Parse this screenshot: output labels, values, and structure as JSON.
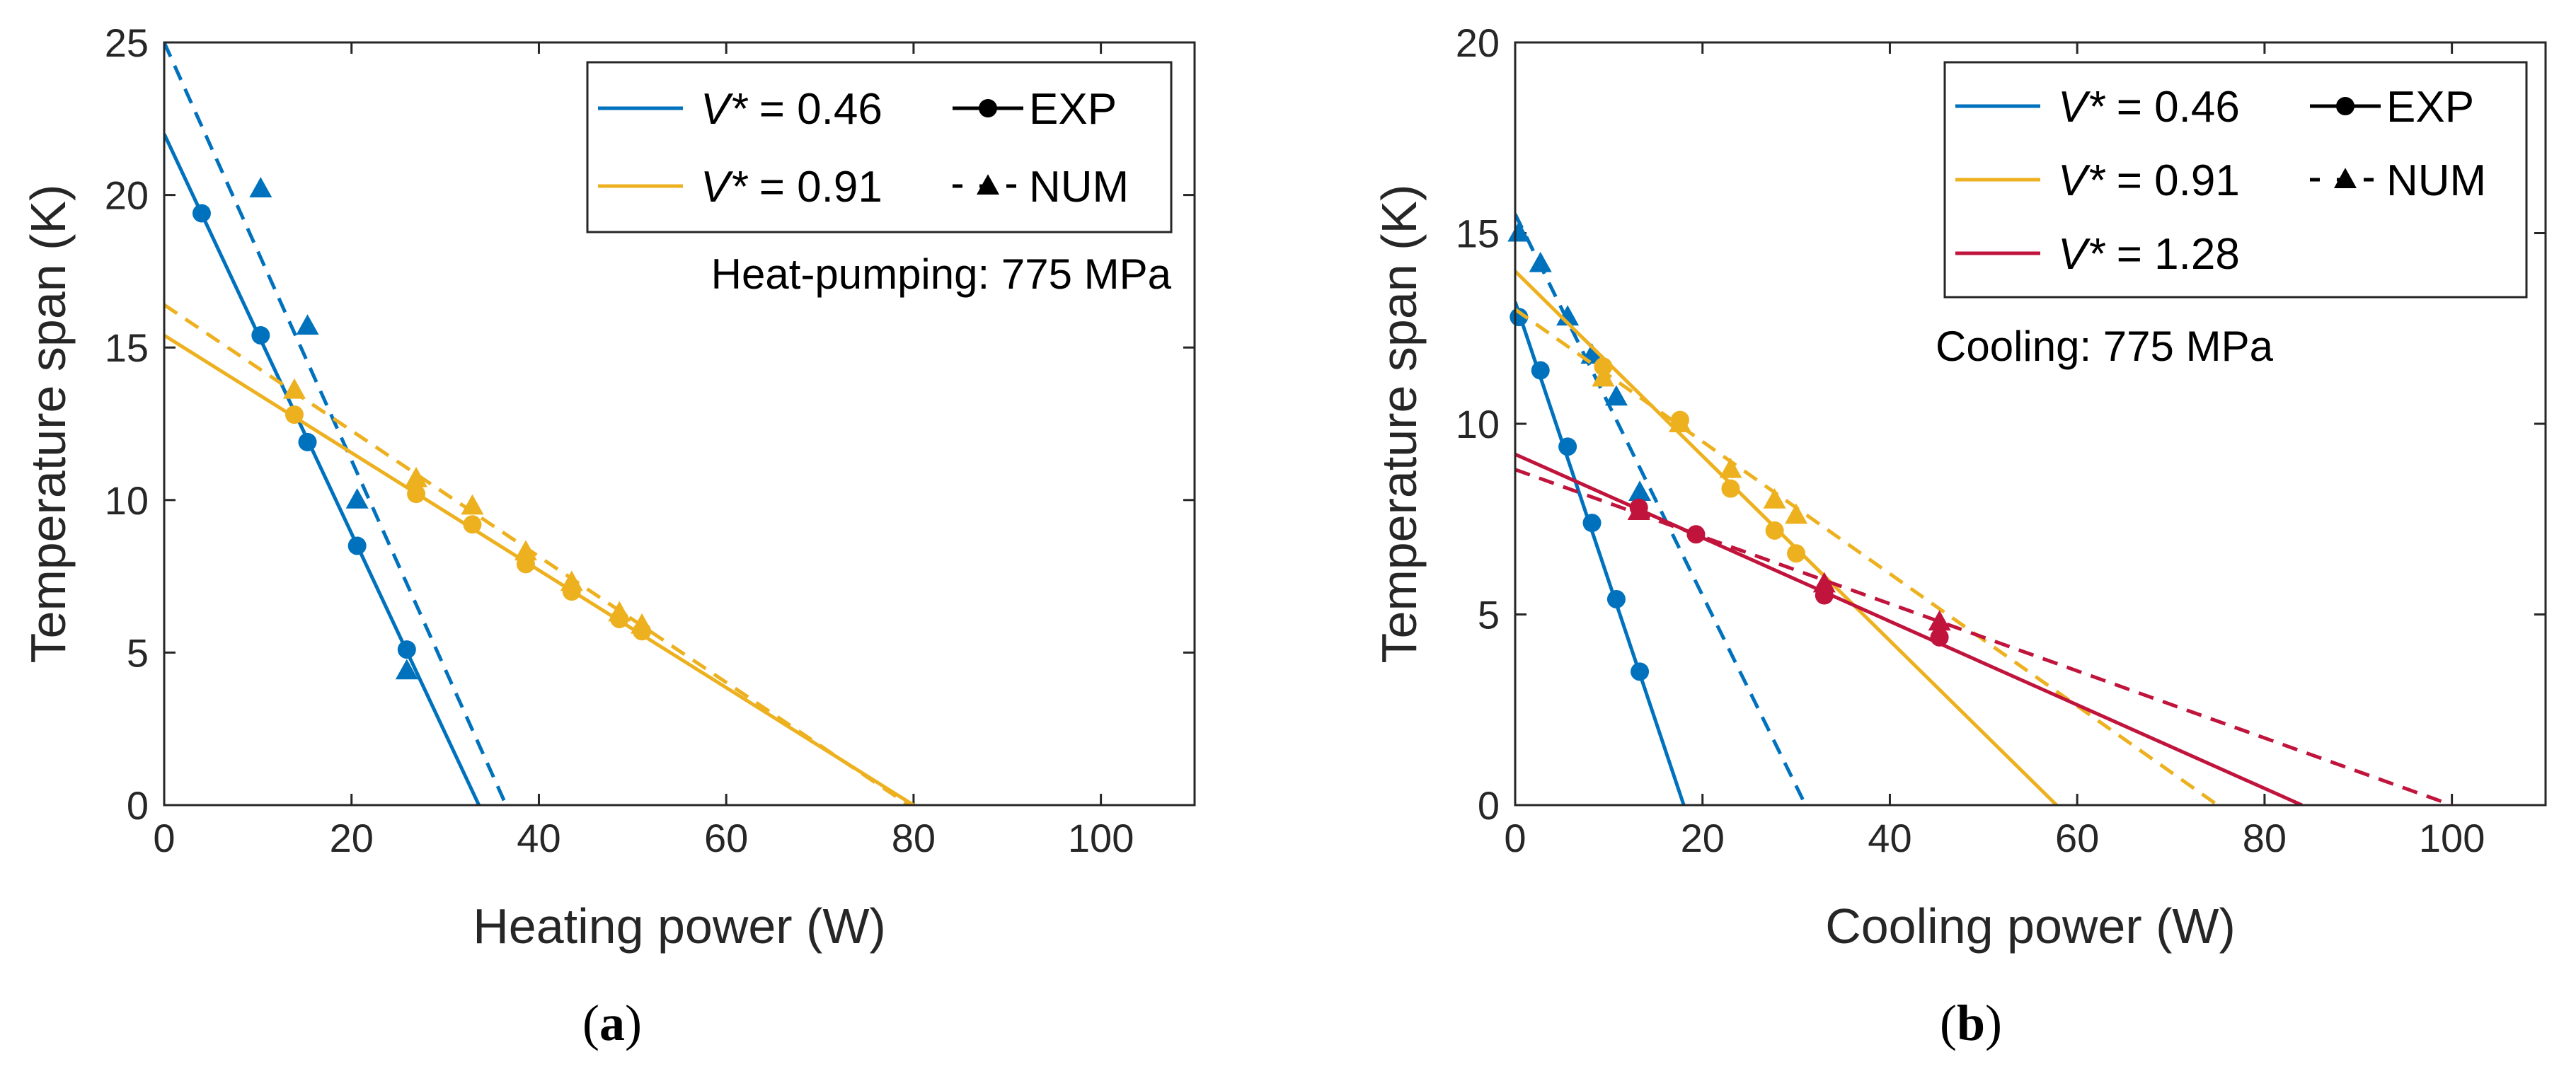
{
  "chart_data": [
    {
      "type": "line",
      "panel_label": "a",
      "xlabel": "Heating power (W)",
      "ylabel": "Temperature span (K)",
      "xlim": [
        0,
        110
      ],
      "ylim": [
        0,
        25
      ],
      "xticks": [
        "0",
        "20",
        "40",
        "60",
        "80",
        "100"
      ],
      "yticks": [
        "0",
        "5",
        "10",
        "15",
        "20",
        "25"
      ],
      "annotation": "Heat-pumping: 775 MPa",
      "legend": {
        "position": "top-right",
        "entries": [
          {
            "prefix": "V*",
            "text": " = 0.46",
            "color": "#0072BD"
          },
          {
            "prefix": "V*",
            "text": " = 0.91",
            "color": "#EDB120"
          }
        ],
        "styles": [
          {
            "text": "EXP",
            "line": "solid",
            "marker": "circle"
          },
          {
            "text": "NUM",
            "line": "dashed",
            "marker": "triangle"
          }
        ]
      },
      "series": [
        {
          "color": "#0072BD",
          "kind": "EXP",
          "marker": "circle",
          "points": [
            [
              4,
              19.4
            ],
            [
              10.3,
              15.4
            ],
            [
              15.3,
              11.9
            ],
            [
              20.6,
              8.5
            ],
            [
              25.9,
              5.1
            ]
          ],
          "fit": [
            [
              0,
              22.0
            ],
            [
              33.6,
              0
            ]
          ]
        },
        {
          "color": "#0072BD",
          "kind": "NUM",
          "marker": "triangle",
          "points": [
            [
              10.3,
              20.2
            ],
            [
              15.3,
              15.7
            ],
            [
              20.6,
              10.0
            ],
            [
              25.9,
              4.4
            ]
          ],
          "fit": [
            [
              0,
              25.0
            ],
            [
              36.5,
              0
            ]
          ]
        },
        {
          "color": "#EDB120",
          "kind": "EXP",
          "marker": "circle",
          "points": [
            [
              13.9,
              12.8
            ],
            [
              26.9,
              10.2
            ],
            [
              32.9,
              9.2
            ],
            [
              38.6,
              7.9
            ],
            [
              43.5,
              7.0
            ],
            [
              48.6,
              6.1
            ],
            [
              51.0,
              5.7
            ]
          ],
          "fit": [
            [
              0,
              15.4
            ],
            [
              80.0,
              0
            ]
          ]
        },
        {
          "color": "#EDB120",
          "kind": "NUM",
          "marker": "triangle",
          "points": [
            [
              13.9,
              13.6
            ],
            [
              26.9,
              10.7
            ],
            [
              32.9,
              9.8
            ],
            [
              38.6,
              8.3
            ],
            [
              43.5,
              7.3
            ],
            [
              48.6,
              6.3
            ],
            [
              51.0,
              5.9
            ]
          ],
          "fit": [
            [
              0,
              16.4
            ],
            [
              79.5,
              0
            ]
          ]
        }
      ]
    },
    {
      "type": "line",
      "panel_label": "b",
      "xlabel": "Cooling power (W)",
      "ylabel": "Temperature span (K)",
      "xlim": [
        0,
        110
      ],
      "ylim": [
        0,
        20
      ],
      "xticks": [
        "0",
        "20",
        "40",
        "60",
        "80",
        "100"
      ],
      "yticks": [
        "0",
        "5",
        "10",
        "15",
        "20"
      ],
      "annotation": "Cooling: 775 MPa",
      "legend": {
        "position": "top-right",
        "entries": [
          {
            "prefix": "V*",
            "text": " = 0.46",
            "color": "#0072BD"
          },
          {
            "prefix": "V*",
            "text": " = 0.91",
            "color": "#EDB120"
          },
          {
            "prefix": "V*",
            "text": " = 1.28",
            "color": "#C0143C"
          }
        ],
        "styles": [
          {
            "text": "EXP",
            "line": "solid",
            "marker": "circle"
          },
          {
            "text": "NUM",
            "line": "dashed",
            "marker": "triangle"
          }
        ]
      },
      "series": [
        {
          "color": "#0072BD",
          "kind": "EXP",
          "marker": "circle",
          "points": [
            [
              0.4,
              12.8
            ],
            [
              2.7,
              11.4
            ],
            [
              5.6,
              9.4
            ],
            [
              8.2,
              7.4
            ],
            [
              10.8,
              5.4
            ],
            [
              13.3,
              3.5
            ]
          ],
          "fit": [
            [
              0,
              13.2
            ],
            [
              18.0,
              0
            ]
          ]
        },
        {
          "color": "#0072BD",
          "kind": "NUM",
          "marker": "triangle",
          "points": [
            [
              0.4,
              15.0
            ],
            [
              2.7,
              14.2
            ],
            [
              5.6,
              12.8
            ],
            [
              8.2,
              11.8
            ],
            [
              10.8,
              10.7
            ],
            [
              13.3,
              8.2
            ]
          ],
          "fit": [
            [
              0,
              15.5
            ],
            [
              31.0,
              0
            ]
          ]
        },
        {
          "color": "#EDB120",
          "kind": "EXP",
          "marker": "circle",
          "points": [
            [
              9.4,
              11.5
            ],
            [
              17.6,
              10.1
            ],
            [
              23.0,
              8.3
            ],
            [
              27.7,
              7.2
            ],
            [
              30.0,
              6.6
            ]
          ],
          "fit": [
            [
              0,
              14.0
            ],
            [
              57.8,
              0
            ]
          ]
        },
        {
          "color": "#EDB120",
          "kind": "NUM",
          "marker": "triangle",
          "points": [
            [
              9.4,
              11.2
            ],
            [
              17.6,
              10.0
            ],
            [
              23.0,
              8.8
            ],
            [
              27.7,
              8.0
            ],
            [
              30.0,
              7.6
            ]
          ],
          "fit": [
            [
              0,
              13.0
            ],
            [
              75.0,
              0
            ]
          ]
        },
        {
          "color": "#C0143C",
          "kind": "EXP",
          "marker": "circle",
          "points": [
            [
              13.2,
              7.8
            ],
            [
              19.3,
              7.1
            ],
            [
              33.0,
              5.5
            ],
            [
              45.3,
              4.4
            ]
          ],
          "fit": [
            [
              0,
              9.2
            ],
            [
              84.0,
              0
            ]
          ]
        },
        {
          "color": "#C0143C",
          "kind": "NUM",
          "marker": "triangle",
          "points": [
            [
              13.2,
              7.7
            ],
            [
              33.0,
              5.8
            ],
            [
              45.3,
              4.8
            ]
          ],
          "fit": [
            [
              0,
              8.8
            ],
            [
              100.0,
              0
            ]
          ]
        }
      ]
    }
  ]
}
